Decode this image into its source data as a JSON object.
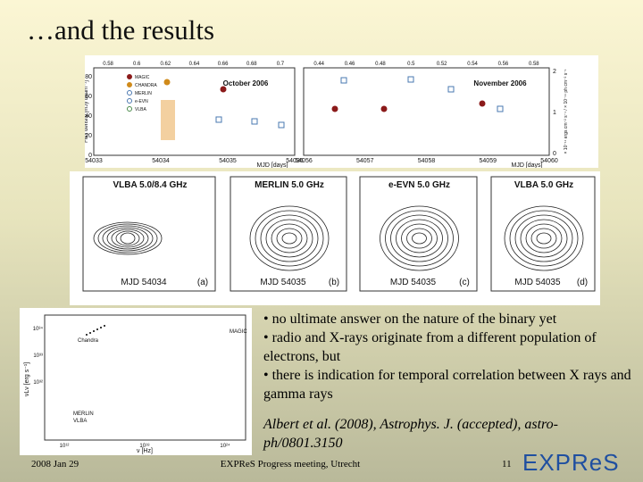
{
  "title": "…and the results",
  "lightcurve": {
    "legend": [
      "MAGIC",
      "CHANDRA",
      "MERLIN",
      "e-EVN",
      "VLBA"
    ],
    "y_label": "Flux density [mJy beam⁻¹]",
    "y_ticks": [
      "80",
      "60",
      "40",
      "20",
      "0"
    ],
    "y2_label": "× 10⁻¹¹ ergs cm⁻² s⁻¹ / × 10⁻¹¹ ph cm⁻² s⁻¹",
    "y2_ticks": [
      "2",
      "1",
      "0"
    ],
    "left": {
      "label": "October 2006",
      "phase_ticks": [
        "0.58",
        "0.6",
        "0.62",
        "0.64",
        "0.66",
        "0.68",
        "0.7"
      ],
      "mjd_ticks": [
        "54033",
        "54034",
        "54035",
        "54036"
      ],
      "x_label": "MJD [days]"
    },
    "right": {
      "label": "November 2006",
      "phase_ticks": [
        "0.44",
        "0.46",
        "0.48",
        "0.5",
        "0.52",
        "0.54",
        "0.56",
        "0.58"
      ],
      "mjd_ticks": [
        "54056",
        "54057",
        "54058",
        "54059",
        "54060"
      ],
      "x_label": "MJD [days]"
    }
  },
  "maps": [
    {
      "title": "VLBA 5.0/8.4 GHz",
      "epoch": "MJD 54034",
      "tag": "(a)"
    },
    {
      "title": "MERLIN 5.0 GHz",
      "epoch": "MJD 54035",
      "tag": "(b)"
    },
    {
      "title": "e-EVN 5.0 GHz",
      "epoch": "MJD 54035",
      "tag": "(c)"
    },
    {
      "title": "VLBA 5.0 GHz",
      "epoch": "MJD 54035",
      "tag": "(d)"
    }
  ],
  "sed": {
    "labels": [
      "Chandra",
      "MAGIC",
      "MERLIN",
      "VLBA"
    ],
    "x_label": "ν [Hz]",
    "y_label": "νLν [erg s⁻¹]",
    "x_ticks": [
      "10¹²",
      "10¹⁸",
      "10²⁴"
    ],
    "y_ticks": [
      "10³⁴",
      "10³³",
      "10³²"
    ]
  },
  "bullets": [
    "• no ultimate answer on the nature of the binary yet",
    "• radio and X-rays originate from a different population of electrons, but",
    "• there is indication for temporal correlation between X rays and gamma rays"
  ],
  "citation": "Albert et al. (2008), Astrophys. J. (accepted), astro-ph/0801.3150",
  "footer": {
    "date": "2008 Jan 29",
    "meeting": "EXPReS Progress meeting, Utrecht",
    "page": "11",
    "logo": "EXPReS"
  }
}
